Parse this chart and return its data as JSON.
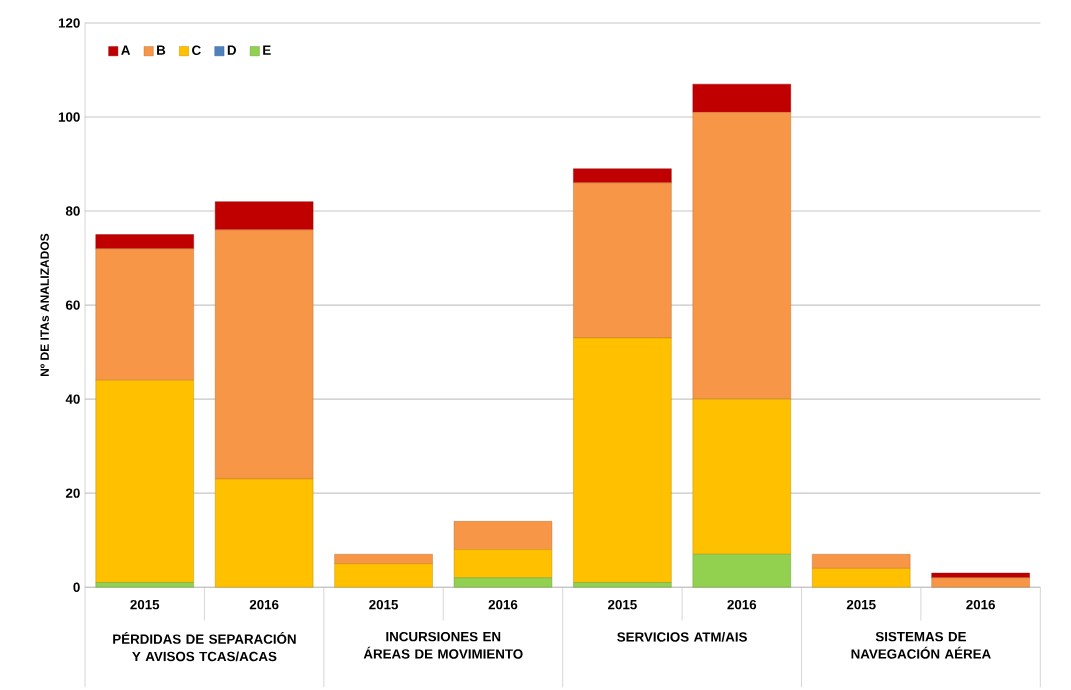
{
  "chart_data": {
    "type": "bar",
    "stacked": true,
    "ylabel": "Nº DE ITAs ANALIZADOS",
    "categories": [
      "2015",
      "2016",
      "2015",
      "2016",
      "2015",
      "2016",
      "2015",
      "2016"
    ],
    "annotations": [
      "PÉRDIDAS DE SEPARACIÓN Y AVISOS TCAS/ACAS",
      "INCURSIONES EN ÁREAS DE MOVIMIENTO",
      "SERVICIOS ATM/AIS",
      "SISTEMAS DE NAVEGACIÓN AÉREA"
    ],
    "series": [
      {
        "name": "E",
        "color": "#92d050",
        "values": [
          1,
          0,
          0,
          2,
          1,
          7,
          0,
          0
        ]
      },
      {
        "name": "D",
        "color": "#4f81bd",
        "values": [
          0,
          0,
          0,
          0,
          0,
          0,
          0,
          0
        ]
      },
      {
        "name": "C",
        "color": "#ffc000",
        "values": [
          43,
          23,
          5,
          6,
          52,
          33,
          4,
          0
        ]
      },
      {
        "name": "B",
        "color": "#f79646",
        "values": [
          28,
          53,
          2,
          6,
          33,
          61,
          3,
          2
        ]
      },
      {
        "name": "A",
        "color": "#c00000",
        "values": [
          3,
          6,
          0,
          0,
          3,
          6,
          0,
          1
        ]
      }
    ],
    "ylim": [
      0,
      120
    ],
    "yticks": [
      0,
      20,
      40,
      60,
      80,
      100,
      120
    ],
    "grid": "y",
    "legend": "top left"
  }
}
